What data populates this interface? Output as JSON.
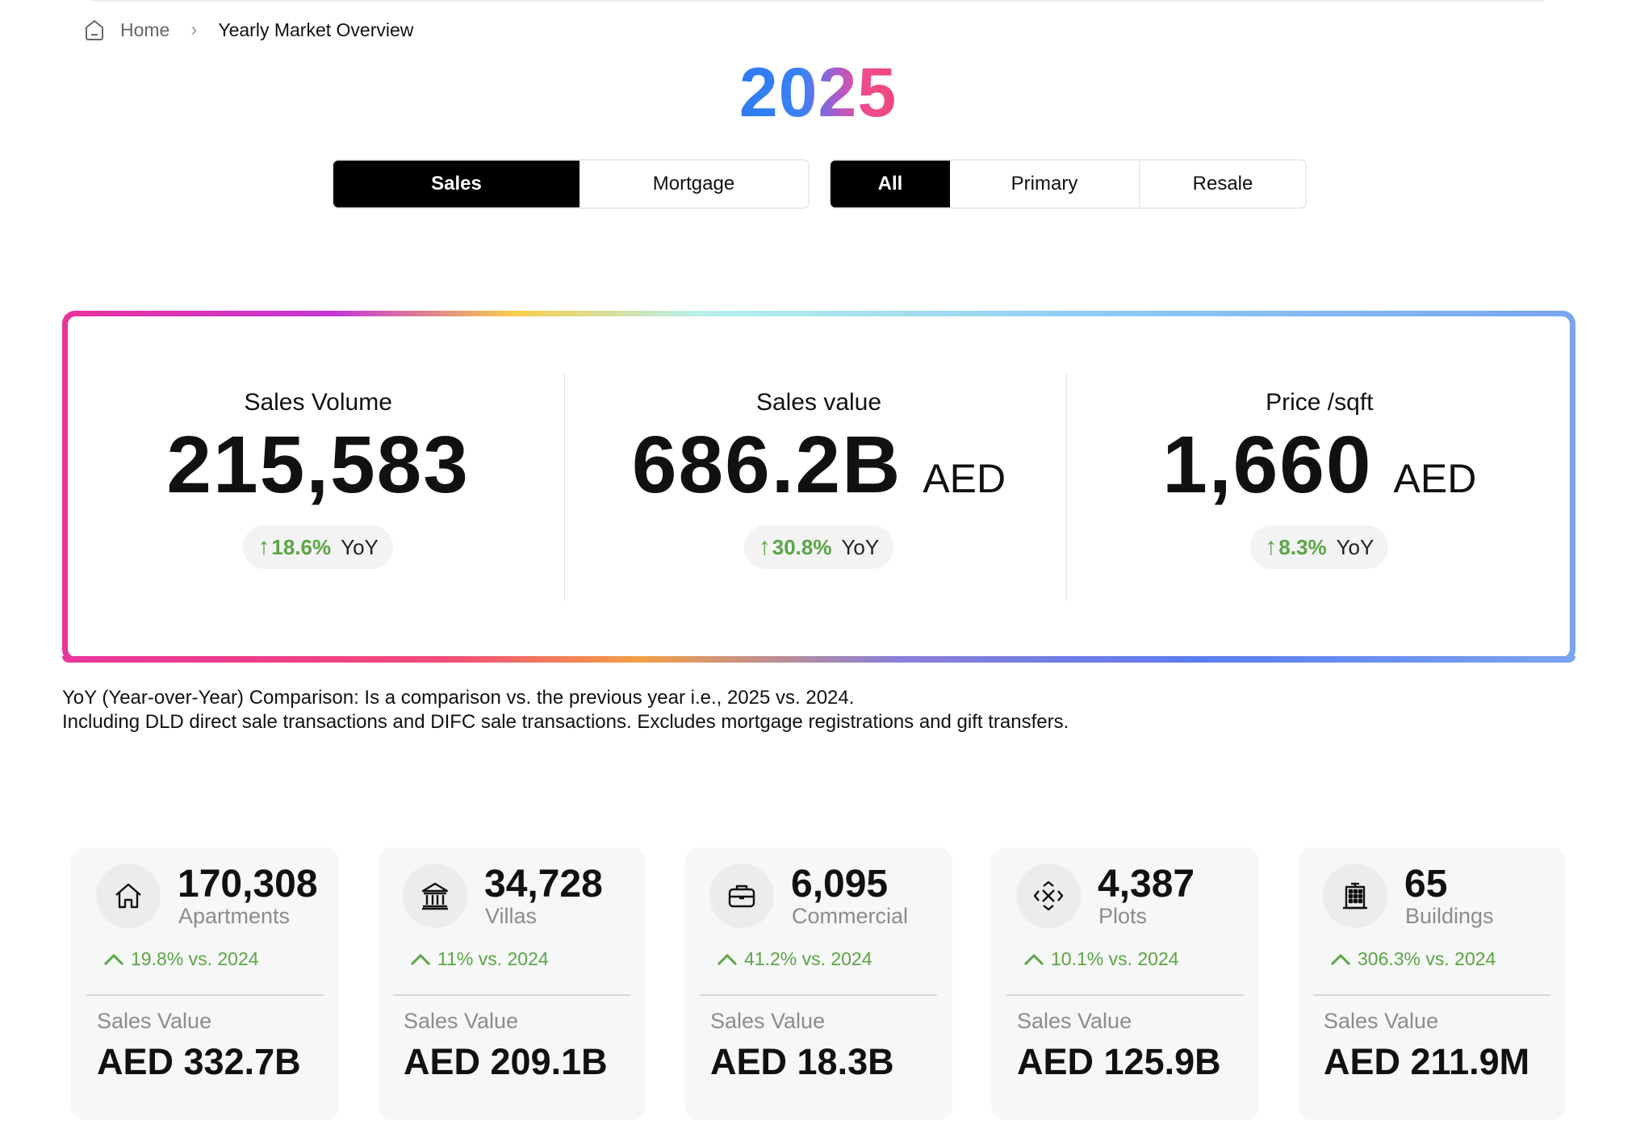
{
  "breadcrumb": {
    "home": "Home",
    "current": "Yearly Market Overview"
  },
  "year": "2025",
  "toggles": {
    "type": [
      "Sales",
      "Mortgage"
    ],
    "type_selected": "Sales",
    "market": [
      "All",
      "Primary",
      "Resale"
    ],
    "market_selected": "All"
  },
  "stats": [
    {
      "title": "Sales Volume",
      "value": "215,583",
      "unit": "",
      "change": "18.6%",
      "change_label": "YoY"
    },
    {
      "title": "Sales value",
      "value": "686.2B",
      "unit": "AED",
      "change": "30.8%",
      "change_label": "YoY"
    },
    {
      "title": "Price /sqft",
      "value": "1,660",
      "unit": "AED",
      "change": "8.3%",
      "change_label": "YoY"
    }
  ],
  "notes": [
    "YoY (Year-over-Year) Comparison: Is a comparison vs. the previous year i.e., 2025 vs. 2024.",
    "Including DLD direct sale transactions and DIFC sale transactions. Excludes mortgage registrations and gift transfers."
  ],
  "cards": [
    {
      "icon": "house-icon",
      "count": "170,308",
      "type": "Apartments",
      "change": "19.8% vs. 2024",
      "sales_label": "Sales Value",
      "sales_value": "AED 332.7B"
    },
    {
      "icon": "villa-icon",
      "count": "34,728",
      "type": "Villas",
      "change": "11% vs. 2024",
      "sales_label": "Sales Value",
      "sales_value": "AED 209.1B"
    },
    {
      "icon": "briefcase-icon",
      "count": "6,095",
      "type": "Commercial",
      "change": "41.2% vs. 2024",
      "sales_label": "Sales Value",
      "sales_value": "AED 18.3B"
    },
    {
      "icon": "plot-expand-icon",
      "count": "4,387",
      "type": "Plots",
      "change": "10.1% vs. 2024",
      "sales_label": "Sales Value",
      "sales_value": "AED 125.9B"
    },
    {
      "icon": "building-icon",
      "count": "65",
      "type": "Buildings",
      "change": "306.3% vs. 2024",
      "sales_label": "Sales Value",
      "sales_value": "AED 211.9M"
    }
  ],
  "colors": {
    "positive": "#5aa545",
    "active_toggle": "#000000"
  }
}
